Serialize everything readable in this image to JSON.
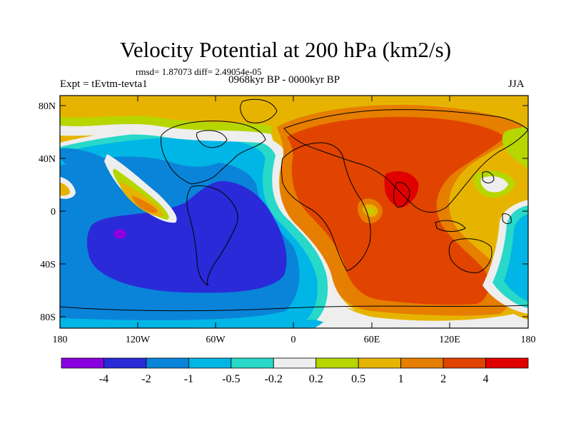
{
  "figure": {
    "title": "Velocity Potential at 200 hPa (km2/s)",
    "stats": "rmsd= 1.87073 diff= 2.49054e-05",
    "left_label": "Expt = tEvtm-tevta1",
    "center_label": "0968kyr BP - 0000kyr BP",
    "right_label": "JJA"
  },
  "map": {
    "lat_ticks": [
      "80N",
      "40N",
      "0",
      "40S",
      "80S"
    ],
    "lon_ticks": [
      "180",
      "120W",
      "60W",
      "0",
      "60E",
      "120E",
      "180"
    ]
  },
  "colorbar": {
    "colors": [
      "#8a00e0",
      "#2a2ad8",
      "#0a84d8",
      "#00b6e6",
      "#28d8c8",
      "#eeeeee",
      "#b6d600",
      "#e6b400",
      "#e67e00",
      "#e04400",
      "#e00000"
    ],
    "labels": [
      "-4",
      "-2",
      "-1",
      "-0.5",
      "-0.2",
      "0.2",
      "0.5",
      "1",
      "2",
      "4"
    ]
  }
}
